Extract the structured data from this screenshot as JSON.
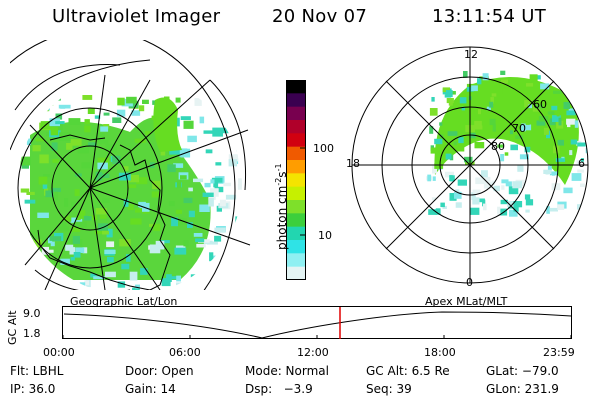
{
  "header": {
    "title": "Ultraviolet Imager",
    "date": "20 Nov 07",
    "time": "13:11:54 UT"
  },
  "colorbar": {
    "label_main": "photon cm",
    "label_sup1": "-2",
    "label_mid": "s",
    "label_sup2": "-1",
    "ticks": [
      "100",
      "10"
    ],
    "colors": [
      "#000000",
      "#3a0050",
      "#78004f",
      "#b0002a",
      "#d10010",
      "#f05a00",
      "#ff9d00",
      "#f4e400",
      "#c6f000",
      "#7ee02a",
      "#3ccf3c",
      "#22d6b0",
      "#2fe3e6",
      "#8ff0f2",
      "#e4f4f4"
    ]
  },
  "polar_plot": {
    "mlt_labels": {
      "top": "12",
      "bottom": "0",
      "left": "18",
      "right": "6"
    },
    "lat_labels": [
      "60",
      "70",
      "80"
    ]
  },
  "timeline": {
    "left_label": "Geographic Lat/Lon",
    "right_label": "Apex MLat/MLT",
    "axis_title": "GC Alt",
    "y_ticks": [
      "9.0",
      "1.8"
    ],
    "x_ticks": [
      "00:00",
      "06:00",
      "12:00",
      "18:00",
      "23:59"
    ]
  },
  "info": {
    "row1": [
      {
        "key": "flt",
        "text": "Flt: LBHL"
      },
      {
        "key": "door",
        "text": "Door: Open"
      },
      {
        "key": "mode",
        "text": "Mode: Normal"
      },
      {
        "key": "gcalt",
        "text": "GC Alt: 6.5 Re"
      },
      {
        "key": "glat",
        "text": "GLat: −79.0"
      }
    ],
    "row2": [
      {
        "key": "ip",
        "text": "IP: 36.0"
      },
      {
        "key": "gain",
        "text": "Gain: 14"
      },
      {
        "key": "dsp",
        "text": "Dsp:   −3.9"
      },
      {
        "key": "seq",
        "text": "Seq: 39"
      },
      {
        "key": "glon",
        "text": "GLon: 231.9"
      }
    ]
  }
}
